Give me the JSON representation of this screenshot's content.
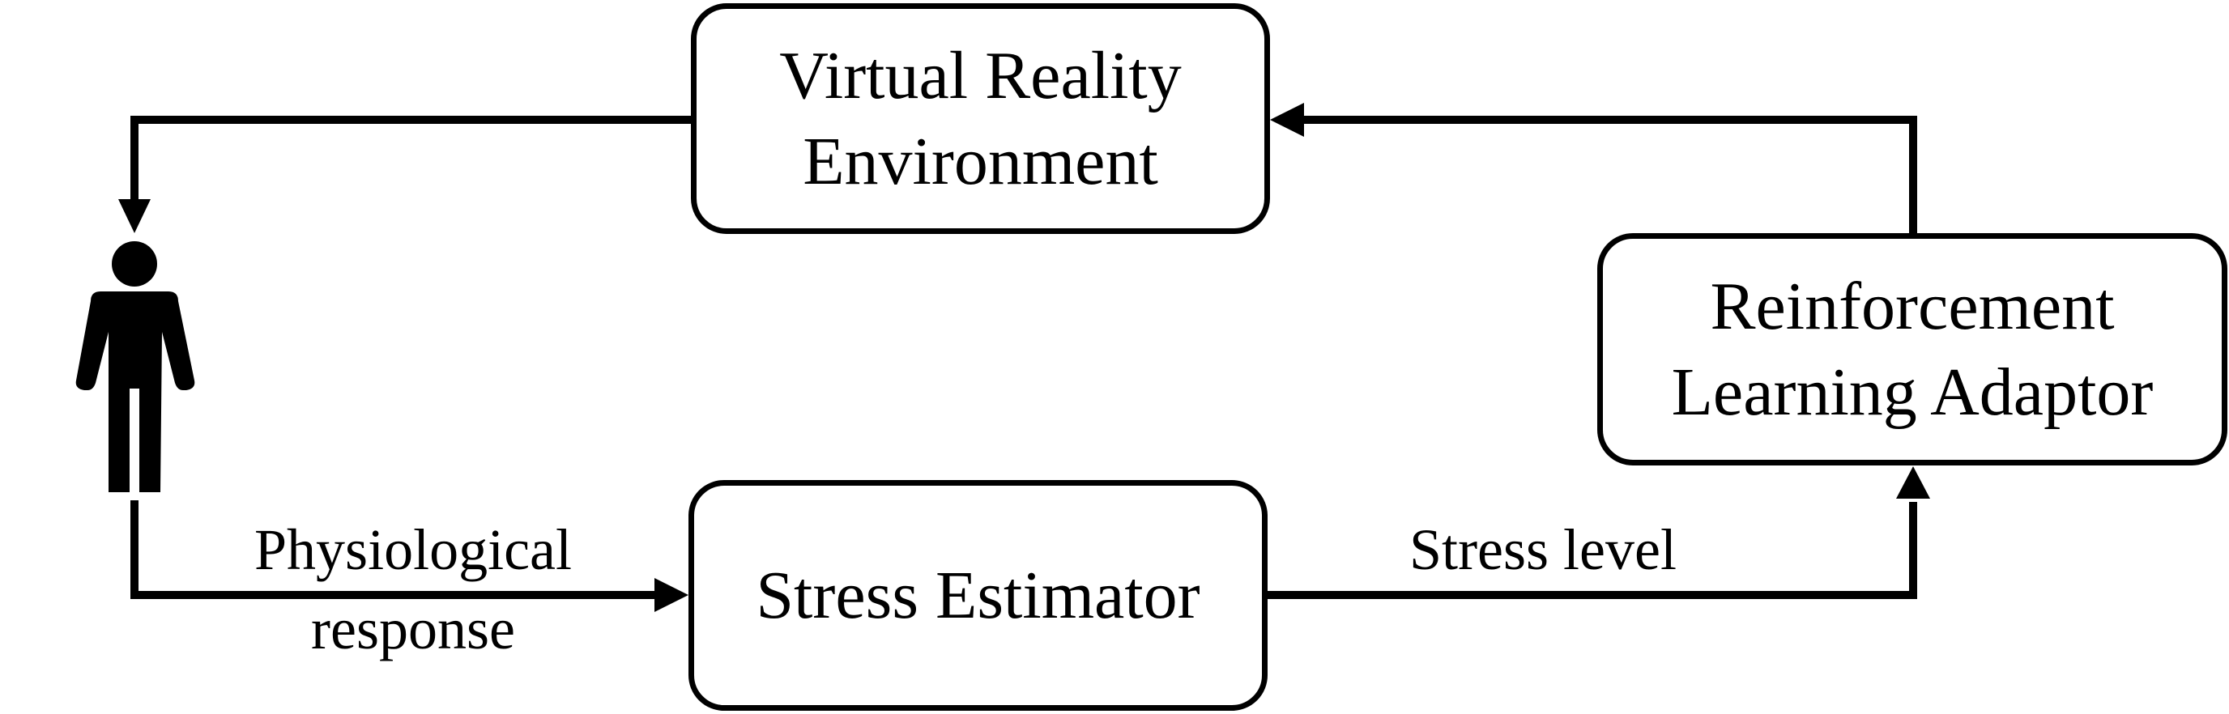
{
  "diagram": {
    "nodes": {
      "virtual_reality_environment": {
        "lines": [
          "Virtual Reality",
          "Environment"
        ]
      },
      "reinforcement_learning_adaptor": {
        "lines": [
          "Reinforcement",
          "Learning Adaptor"
        ]
      },
      "stress_estimator": {
        "lines": [
          "Stress Estimator"
        ]
      }
    },
    "edge_labels": {
      "physiological_response": [
        "Physiological",
        "response"
      ],
      "stress_level": [
        "Stress level"
      ]
    },
    "icons": {
      "person": "person-icon"
    },
    "colors": {
      "stroke": "#000000",
      "background": "#ffffff"
    }
  }
}
